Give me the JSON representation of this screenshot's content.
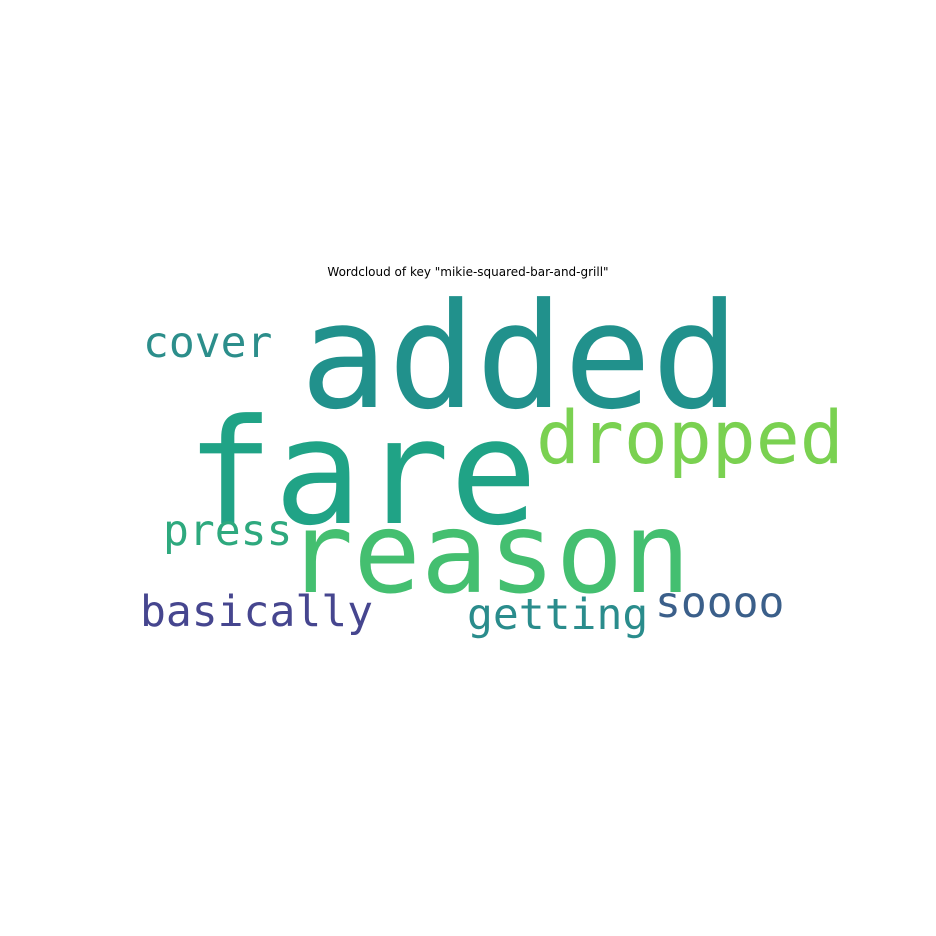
{
  "chart_data": {
    "type": "wordcloud",
    "title": "Wordcloud of key \"mikie-squared-bar-and-grill\"",
    "background": "#ffffff",
    "words": [
      {
        "text": "added",
        "color": "#21918c"
      },
      {
        "text": "fare",
        "color": "#20a386"
      },
      {
        "text": "reason",
        "color": "#44bf70"
      },
      {
        "text": "dropped",
        "color": "#7ad151"
      },
      {
        "text": "cover",
        "color": "#2c8e8b"
      },
      {
        "text": "press",
        "color": "#2ea97e"
      },
      {
        "text": "basically",
        "color": "#46468f"
      },
      {
        "text": "getting",
        "color": "#2a8c8c"
      },
      {
        "text": "soooo",
        "color": "#3b5f8a"
      }
    ]
  }
}
